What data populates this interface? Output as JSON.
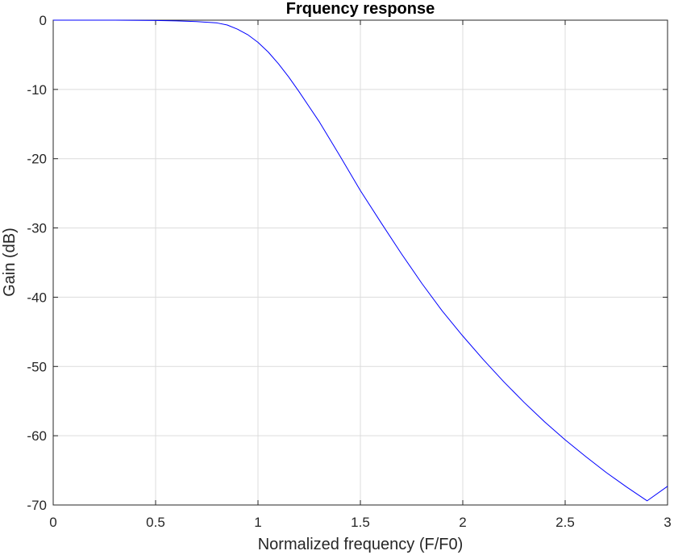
{
  "chart_data": {
    "type": "line",
    "title": "Frquency response",
    "xlabel": "Normalized frequency (F/F0)",
    "ylabel": "Gain (dB)",
    "xlim": [
      0,
      3
    ],
    "ylim": [
      -70,
      0
    ],
    "grid": true,
    "xticks": [
      0,
      0.5,
      1,
      1.5,
      2,
      2.5,
      3
    ],
    "xtick_labels": [
      "0",
      "0.5",
      "1",
      "1.5",
      "2",
      "2.5",
      "3"
    ],
    "yticks": [
      0,
      -10,
      -20,
      -30,
      -40,
      -50,
      -60,
      -70
    ],
    "ytick_labels": [
      "0",
      "-10",
      "-20",
      "-30",
      "-40",
      "-50",
      "-60",
      "-70"
    ],
    "series": [
      {
        "color": "#0000ff",
        "x": [
          0,
          0.3,
          0.5,
          0.6,
          0.7,
          0.8,
          0.85,
          0.9,
          0.95,
          1.0,
          1.05,
          1.1,
          1.15,
          1.2,
          1.3,
          1.4,
          1.5,
          1.6,
          1.7,
          1.8,
          1.9,
          2.0,
          2.1,
          2.2,
          2.3,
          2.4,
          2.5,
          2.6,
          2.7,
          2.8,
          2.9,
          3.0
        ],
        "y": [
          0,
          0,
          -0.05,
          -0.1,
          -0.2,
          -0.4,
          -0.7,
          -1.3,
          -2.1,
          -3.2,
          -4.6,
          -6.3,
          -8.2,
          -10.3,
          -14.7,
          -19.6,
          -24.6,
          -29.2,
          -33.7,
          -38.0,
          -42.0,
          -45.6,
          -49.0,
          -52.2,
          -55.2,
          -58.0,
          -60.6,
          -63.0,
          -65.3,
          -67.4,
          -69.4,
          -67.3
        ]
      }
    ]
  }
}
